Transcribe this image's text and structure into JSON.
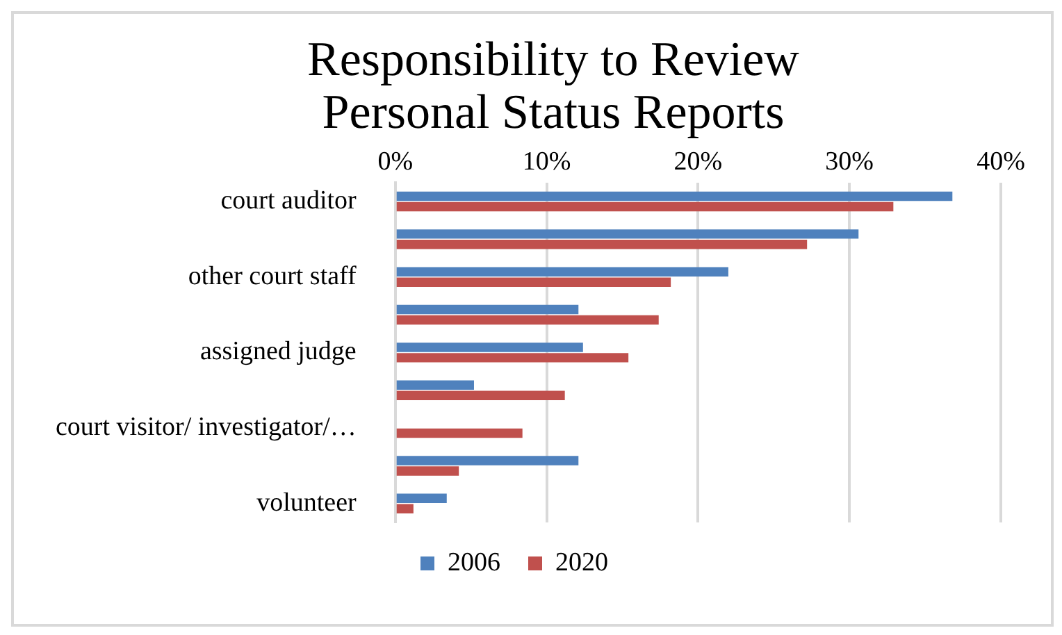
{
  "chart_data": {
    "type": "bar",
    "orientation": "horizontal",
    "title": "Responsibility to Review Personal Status Reports",
    "categories": [
      "court auditor",
      null,
      "other court staff",
      null,
      "assigned judge",
      null,
      "court visitor/ investigator/…",
      null,
      "volunteer"
    ],
    "series": [
      {
        "name": "2006",
        "color": "#4f81bd",
        "values": [
          36.8,
          30.6,
          22.0,
          12.1,
          12.4,
          5.2,
          null,
          12.1,
          3.4
        ]
      },
      {
        "name": "2020",
        "color": "#c0504d",
        "values": [
          32.9,
          27.2,
          18.2,
          17.4,
          15.4,
          11.2,
          8.4,
          4.2,
          1.2
        ]
      }
    ],
    "xlim": [
      0,
      40
    ],
    "xticks": [
      {
        "value": 0,
        "label": "0%"
      },
      {
        "value": 10,
        "label": "10%"
      },
      {
        "value": 20,
        "label": "20%"
      },
      {
        "value": 30,
        "label": "30%"
      },
      {
        "value": 40,
        "label": "40%"
      }
    ],
    "grid": "x",
    "legend": "bottom"
  }
}
